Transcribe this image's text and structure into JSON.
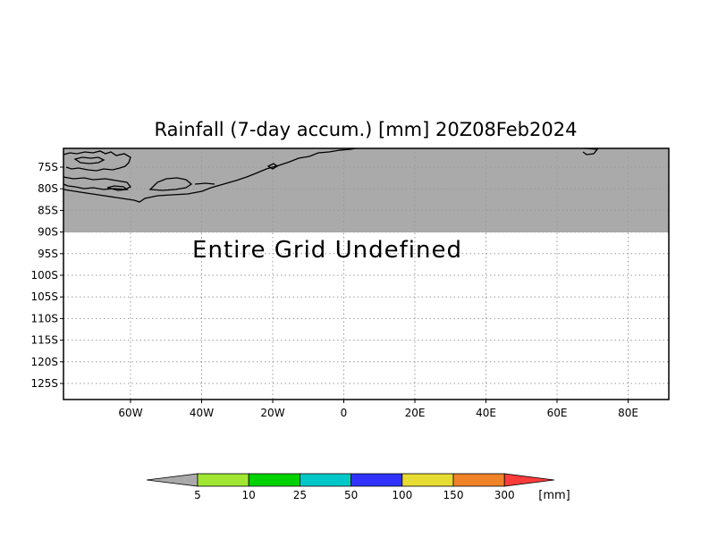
{
  "title": "Rainfall (7-day accum.) [mm] 20Z08Feb2024",
  "map": {
    "message": "Entire Grid Undefined",
    "lat_labels": [
      "75S",
      "80S",
      "85S",
      "90S",
      "95S",
      "100S",
      "105S",
      "110S",
      "115S",
      "120S",
      "125S"
    ],
    "lon_labels": [
      "60W",
      "40W",
      "20W",
      "0",
      "20E",
      "40E",
      "60E",
      "80E"
    ],
    "undefined_fill_color": "#aaaaaa"
  },
  "legend": {
    "unit": "[mm]",
    "thresholds": [
      "5",
      "10",
      "25",
      "50",
      "100",
      "150",
      "300"
    ],
    "colors": [
      "#aaaaaa",
      "#a0e632",
      "#00d200",
      "#00c8c8",
      "#3232ff",
      "#e6dc32",
      "#f08228",
      "#fa3c3c"
    ]
  }
}
